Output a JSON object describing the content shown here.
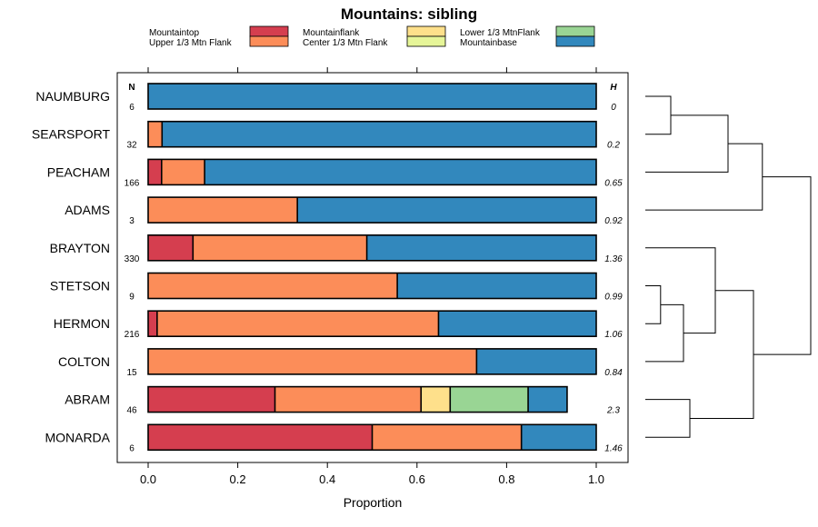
{
  "chart_data": {
    "type": "bar",
    "subtype": "stacked-horizontal-proportion",
    "title": "Mountains: sibling",
    "xlabel": "Proportion",
    "ylabel": "",
    "xlim": [
      0,
      1
    ],
    "xticks": [
      "0.0",
      "0.2",
      "0.4",
      "0.6",
      "0.8",
      "1.0"
    ],
    "xtick_values": [
      0,
      0.2,
      0.4,
      0.6,
      0.8,
      1.0
    ],
    "n_header": "N",
    "h_header": "H",
    "categories": [
      "NAUMBURG",
      "SEARSPORT",
      "PEACHAM",
      "ADAMS",
      "BRAYTON",
      "STETSON",
      "HERMON",
      "COLTON",
      "ABRAM",
      "MONARDA"
    ],
    "n_values": [
      "6",
      "32",
      "166",
      "3",
      "330",
      "9",
      "216",
      "15",
      "46",
      "6"
    ],
    "h_values": [
      "0",
      "0.2",
      "0.65",
      "0.92",
      "1.36",
      "0.99",
      "1.06",
      "0.84",
      "2.3",
      "1.46"
    ],
    "legend_entries": [
      {
        "name": "Mountaintop",
        "color": "#d53e4f"
      },
      {
        "name": "Upper 1/3 Mtn Flank",
        "color": "#fc8d59"
      },
      {
        "name": "Mountainflank",
        "color": "#fee08b"
      },
      {
        "name": "Center 1/3 Mtn Flank",
        "color": "#e6f598"
      },
      {
        "name": "Lower 1/3 MtnFlank",
        "color": "#99d594"
      },
      {
        "name": "Mountainbase",
        "color": "#3288bd"
      }
    ],
    "series": [
      {
        "name": "Mountaintop",
        "values": [
          0,
          0,
          0.03,
          0,
          0.1,
          0,
          0.02,
          0,
          0.283,
          0.5
        ]
      },
      {
        "name": "Upper 1/3 Mtn Flank",
        "values": [
          0,
          0.031,
          0.096,
          0.333,
          0.388,
          0.556,
          0.628,
          0.733,
          0.326,
          0.333
        ]
      },
      {
        "name": "Mountainflank",
        "values": [
          0,
          0,
          0,
          0,
          0,
          0,
          0,
          0,
          0.065,
          0
        ]
      },
      {
        "name": "Center 1/3 Mtn Flank",
        "values": [
          0,
          0,
          0,
          0,
          0,
          0,
          0,
          0,
          0,
          0
        ]
      },
      {
        "name": "Lower 1/3 MtnFlank",
        "values": [
          0,
          0,
          0,
          0,
          0,
          0,
          0,
          0,
          0.174,
          0
        ]
      },
      {
        "name": "Mountainbase",
        "values": [
          1,
          0.969,
          0.874,
          0.667,
          0.512,
          0.444,
          0.352,
          0.267,
          0.087,
          0.167
        ]
      }
    ],
    "dendrogram_merges": [
      {
        "a": "L0",
        "b": "L1",
        "height": 0.2
      },
      {
        "a": "M0",
        "b": "L2",
        "height": 0.65
      },
      {
        "a": "M1",
        "b": "L3",
        "height": 0.92
      },
      {
        "a": "L5",
        "b": "L6",
        "height": 0.12
      },
      {
        "a": "M3",
        "b": "L7",
        "height": 0.3
      },
      {
        "a": "L4",
        "b": "M4",
        "height": 0.55
      },
      {
        "a": "L8",
        "b": "L9",
        "height": 0.35
      },
      {
        "a": "M5",
        "b": "M6",
        "height": 0.85
      },
      {
        "a": "M2",
        "b": "M7",
        "height": 1.3
      }
    ],
    "dendrogram_max_height": 1.3,
    "grid": false,
    "legend_position": "top"
  }
}
